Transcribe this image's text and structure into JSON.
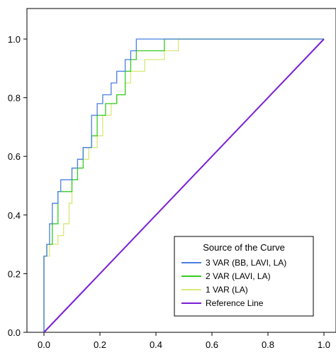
{
  "chart_data": {
    "type": "line",
    "title": "",
    "xlabel": "",
    "ylabel": "",
    "xlim": [
      0,
      1
    ],
    "ylim": [
      0,
      1
    ],
    "x_ticks": [
      "0.0",
      "0.2",
      "0.4",
      "0.6",
      "0.8",
      "1.0"
    ],
    "y_ticks": [
      "0.0",
      "0.2",
      "0.4",
      "0.6",
      "0.8",
      "1.0"
    ],
    "grid": false,
    "legend": {
      "title": "Source of the Curve",
      "placement": "bottom-right"
    },
    "series": [
      {
        "name": "3 VAR (BB, LAVI, LA)",
        "color": "#4a7fe0",
        "step": true,
        "x": [
          0,
          0,
          0.01,
          0.01,
          0.02,
          0.02,
          0.03,
          0.03,
          0.05,
          0.05,
          0.06,
          0.06,
          0.1,
          0.1,
          0.12,
          0.12,
          0.14,
          0.14,
          0.17,
          0.17,
          0.19,
          0.19,
          0.21,
          0.21,
          0.24,
          0.24,
          0.26,
          0.26,
          0.29,
          0.29,
          0.31,
          0.31,
          0.33,
          0.33,
          0.43,
          1.0
        ],
        "y": [
          0,
          0.26,
          0.26,
          0.3,
          0.3,
          0.37,
          0.37,
          0.44,
          0.44,
          0.48,
          0.48,
          0.52,
          0.52,
          0.56,
          0.56,
          0.59,
          0.59,
          0.63,
          0.63,
          0.74,
          0.74,
          0.78,
          0.78,
          0.81,
          0.81,
          0.85,
          0.85,
          0.89,
          0.89,
          0.93,
          0.93,
          0.96,
          0.96,
          1.0,
          1.0,
          1.0
        ]
      },
      {
        "name": "2 VAR (LAVI, LA)",
        "color": "#33cc22",
        "step": true,
        "x": [
          0,
          0,
          0.01,
          0.01,
          0.03,
          0.03,
          0.05,
          0.05,
          0.1,
          0.1,
          0.12,
          0.12,
          0.14,
          0.14,
          0.17,
          0.17,
          0.19,
          0.19,
          0.22,
          0.22,
          0.26,
          0.26,
          0.29,
          0.29,
          0.31,
          0.31,
          0.33,
          0.33,
          0.43,
          0.43,
          1.0
        ],
        "y": [
          0,
          0.26,
          0.26,
          0.3,
          0.3,
          0.37,
          0.37,
          0.48,
          0.48,
          0.52,
          0.52,
          0.56,
          0.56,
          0.63,
          0.63,
          0.67,
          0.67,
          0.74,
          0.74,
          0.78,
          0.78,
          0.81,
          0.81,
          0.89,
          0.89,
          0.93,
          0.93,
          0.96,
          0.96,
          1.0,
          1.0
        ]
      },
      {
        "name": "1 VAR (LA)",
        "color": "#d8e878",
        "step": true,
        "x": [
          0,
          0,
          0.02,
          0.02,
          0.05,
          0.05,
          0.07,
          0.07,
          0.09,
          0.09,
          0.1,
          0.1,
          0.12,
          0.12,
          0.16,
          0.16,
          0.19,
          0.19,
          0.21,
          0.21,
          0.24,
          0.24,
          0.26,
          0.26,
          0.29,
          0.29,
          0.31,
          0.31,
          0.36,
          0.36,
          0.43,
          0.43,
          0.48,
          0.48,
          1.0
        ],
        "y": [
          0,
          0.26,
          0.26,
          0.3,
          0.3,
          0.33,
          0.33,
          0.37,
          0.37,
          0.44,
          0.44,
          0.56,
          0.56,
          0.59,
          0.59,
          0.63,
          0.63,
          0.67,
          0.67,
          0.74,
          0.74,
          0.78,
          0.78,
          0.81,
          0.81,
          0.85,
          0.85,
          0.89,
          0.89,
          0.93,
          0.93,
          0.96,
          0.96,
          1.0,
          1.0
        ]
      },
      {
        "name": "Reference Line",
        "color": "#7a1fd6",
        "step": false,
        "x": [
          0,
          1
        ],
        "y": [
          0,
          1
        ]
      }
    ]
  }
}
